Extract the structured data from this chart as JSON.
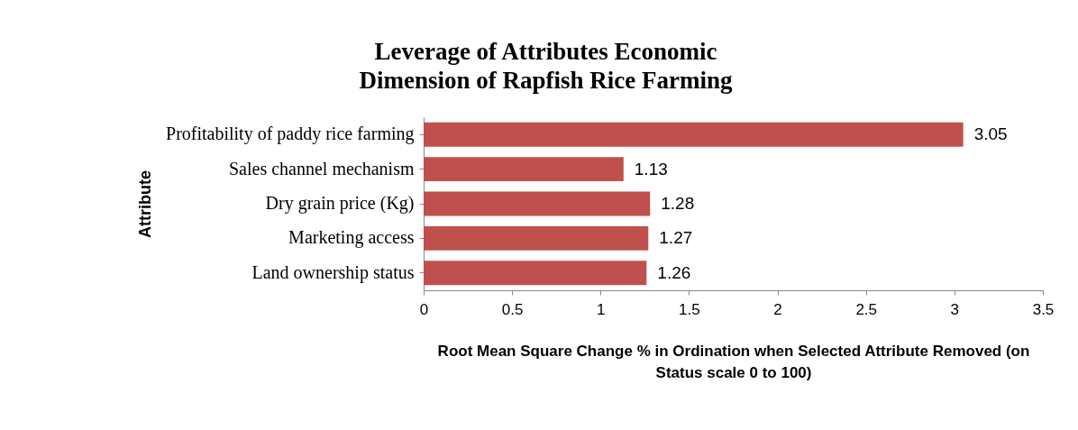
{
  "chart_data": {
    "type": "bar",
    "orientation": "horizontal",
    "title": "Leverage of Attributes Economic Dimension of Rapfish Rice Farming",
    "xlabel": "Root Mean Square Change % in Ordination when Selected Attribute Removed (on Status scale 0 to 100)",
    "ylabel": "Attribute",
    "categories": [
      "Profitability of paddy rice farming",
      "Sales channel mechanism",
      "Dry grain price (Kg)",
      "Marketing access",
      "Land ownership status"
    ],
    "values": [
      3.05,
      1.13,
      1.28,
      1.27,
      1.26
    ],
    "color": "#c0504d",
    "xlim": [
      0,
      3.5
    ],
    "xticks": [
      0,
      0.5,
      1,
      1.5,
      2,
      2.5,
      3,
      3.5
    ],
    "grid": false,
    "data_labels": true
  }
}
